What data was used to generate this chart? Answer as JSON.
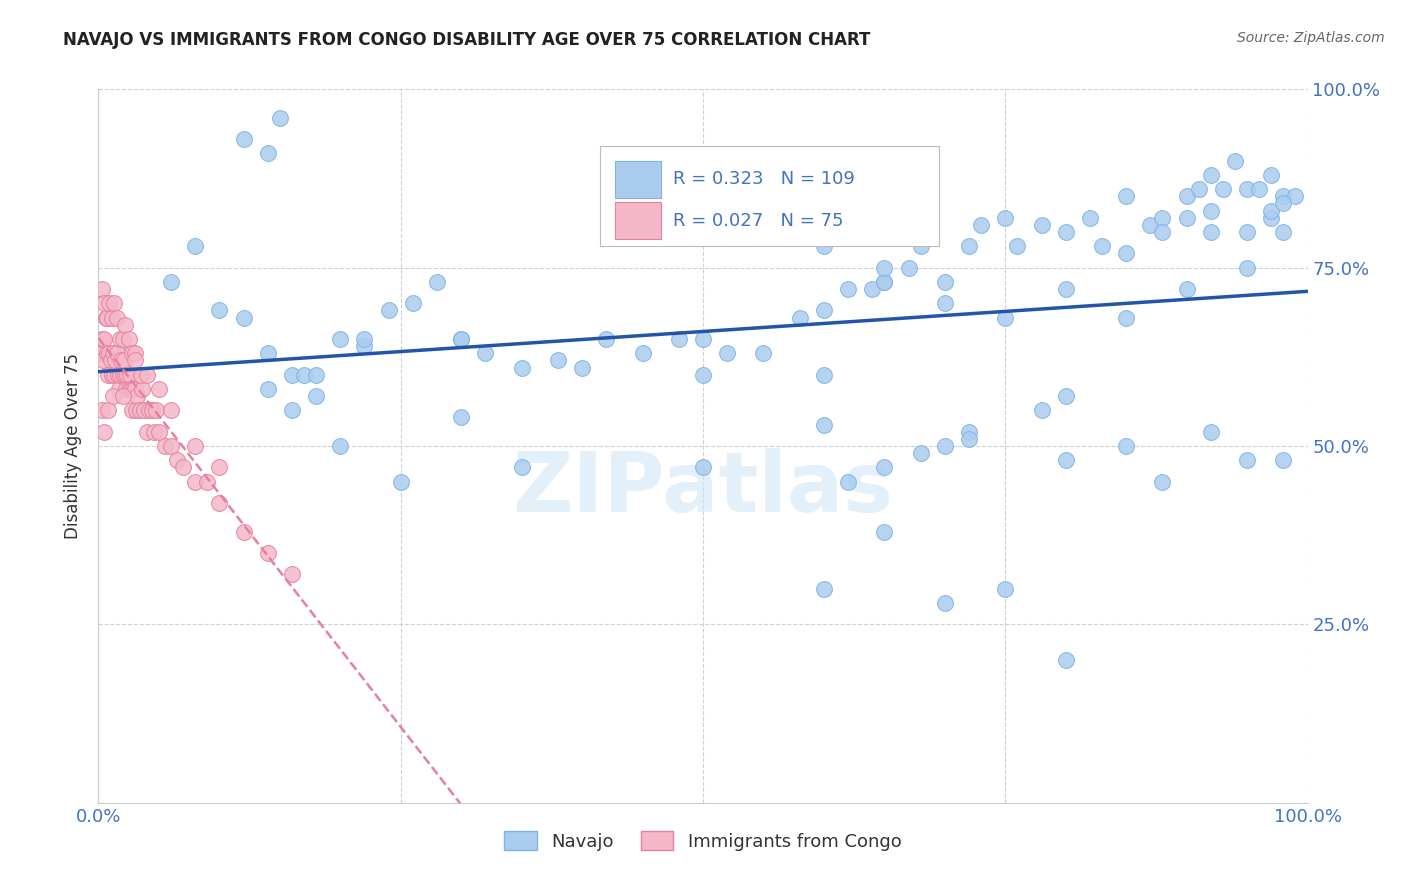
{
  "title": "NAVAJO VS IMMIGRANTS FROM CONGO DISABILITY AGE OVER 75 CORRELATION CHART",
  "source": "Source: ZipAtlas.com",
  "ylabel": "Disability Age Over 75",
  "xlim": [
    0.0,
    1.0
  ],
  "ylim": [
    0.0,
    1.0
  ],
  "background_color": "#ffffff",
  "grid_color": "#d0d0d0",
  "title_color": "#222222",
  "axis_color": "#4472c4",
  "watermark_text": "ZIPatlas",
  "legend_R1": "0.323",
  "legend_N1": "109",
  "legend_R2": "0.027",
  "legend_N2": "75",
  "legend_color": "#4472c4",
  "series1_color": "#aaccee",
  "series1_edge": "#7fb3e8",
  "series2_color": "#f4b8c8",
  "series2_edge": "#e87fa0",
  "trendline1_color": "#2255aa",
  "trendline2_color": "#e87fa0",
  "navajo_x": [
    0.02,
    0.06,
    0.08,
    0.1,
    0.12,
    0.14,
    0.15,
    0.16,
    0.17,
    0.18,
    0.2,
    0.22,
    0.24,
    0.26,
    0.28,
    0.3,
    0.32,
    0.35,
    0.38,
    0.4,
    0.42,
    0.45,
    0.48,
    0.5,
    0.52,
    0.55,
    0.58,
    0.6,
    0.62,
    0.64,
    0.65,
    0.67,
    0.68,
    0.7,
    0.72,
    0.73,
    0.75,
    0.76,
    0.78,
    0.8,
    0.82,
    0.83,
    0.85,
    0.87,
    0.88,
    0.9,
    0.91,
    0.92,
    0.93,
    0.94,
    0.95,
    0.96,
    0.97,
    0.98,
    0.99,
    0.14,
    0.3,
    0.5,
    0.65,
    0.8,
    0.92,
    0.97,
    0.85,
    0.9,
    0.95,
    0.98,
    0.62,
    0.72,
    0.8,
    0.85,
    0.88,
    0.92,
    0.95,
    0.98,
    0.6,
    0.65,
    0.7,
    0.75,
    0.8,
    0.6,
    0.35,
    0.5,
    0.22,
    0.88,
    0.3,
    0.12,
    0.14,
    0.16,
    0.18,
    0.2,
    0.25,
    0.6,
    0.65,
    0.7,
    0.75,
    0.8,
    0.85,
    0.9,
    0.92,
    0.95,
    0.97,
    0.98,
    0.6,
    0.65,
    0.68,
    0.7,
    0.72,
    0.78
  ],
  "navajo_y": [
    0.63,
    0.73,
    0.78,
    0.69,
    0.93,
    0.91,
    0.96,
    0.6,
    0.6,
    0.57,
    0.65,
    0.64,
    0.69,
    0.7,
    0.73,
    0.65,
    0.63,
    0.61,
    0.62,
    0.61,
    0.65,
    0.63,
    0.65,
    0.65,
    0.63,
    0.63,
    0.68,
    0.69,
    0.72,
    0.72,
    0.73,
    0.75,
    0.78,
    0.73,
    0.78,
    0.81,
    0.82,
    0.78,
    0.81,
    0.8,
    0.82,
    0.78,
    0.85,
    0.81,
    0.82,
    0.85,
    0.86,
    0.88,
    0.86,
    0.9,
    0.86,
    0.86,
    0.88,
    0.85,
    0.85,
    0.58,
    0.54,
    0.6,
    0.73,
    0.57,
    0.8,
    0.82,
    0.68,
    0.72,
    0.75,
    0.8,
    0.45,
    0.52,
    0.48,
    0.5,
    0.45,
    0.52,
    0.48,
    0.48,
    0.3,
    0.38,
    0.28,
    0.3,
    0.2,
    0.6,
    0.47,
    0.47,
    0.65,
    0.8,
    0.65,
    0.68,
    0.63,
    0.55,
    0.6,
    0.5,
    0.45,
    0.78,
    0.75,
    0.7,
    0.68,
    0.72,
    0.77,
    0.82,
    0.83,
    0.8,
    0.83,
    0.84,
    0.53,
    0.47,
    0.49,
    0.5,
    0.51,
    0.55
  ],
  "congo_x": [
    0.002,
    0.003,
    0.004,
    0.005,
    0.006,
    0.007,
    0.008,
    0.009,
    0.01,
    0.011,
    0.012,
    0.013,
    0.014,
    0.015,
    0.016,
    0.017,
    0.018,
    0.019,
    0.02,
    0.021,
    0.022,
    0.023,
    0.024,
    0.025,
    0.026,
    0.027,
    0.028,
    0.029,
    0.03,
    0.031,
    0.032,
    0.034,
    0.036,
    0.038,
    0.04,
    0.042,
    0.044,
    0.046,
    0.048,
    0.05,
    0.055,
    0.06,
    0.065,
    0.07,
    0.08,
    0.09,
    0.1,
    0.12,
    0.14,
    0.16,
    0.003,
    0.005,
    0.007,
    0.009,
    0.011,
    0.013,
    0.015,
    0.018,
    0.02,
    0.022,
    0.025,
    0.028,
    0.03,
    0.035,
    0.04,
    0.05,
    0.06,
    0.08,
    0.1,
    0.003,
    0.005,
    0.008,
    0.012,
    0.02,
    0.03
  ],
  "congo_y": [
    0.63,
    0.65,
    0.62,
    0.65,
    0.68,
    0.63,
    0.6,
    0.63,
    0.62,
    0.6,
    0.63,
    0.6,
    0.62,
    0.63,
    0.6,
    0.58,
    0.6,
    0.62,
    0.6,
    0.62,
    0.6,
    0.58,
    0.6,
    0.58,
    0.6,
    0.58,
    0.55,
    0.58,
    0.58,
    0.55,
    0.57,
    0.55,
    0.58,
    0.55,
    0.52,
    0.55,
    0.55,
    0.52,
    0.55,
    0.52,
    0.5,
    0.5,
    0.48,
    0.47,
    0.45,
    0.45,
    0.42,
    0.38,
    0.35,
    0.32,
    0.72,
    0.7,
    0.68,
    0.7,
    0.68,
    0.7,
    0.68,
    0.65,
    0.65,
    0.67,
    0.65,
    0.63,
    0.63,
    0.6,
    0.6,
    0.58,
    0.55,
    0.5,
    0.47,
    0.55,
    0.52,
    0.55,
    0.57,
    0.57,
    0.62
  ]
}
